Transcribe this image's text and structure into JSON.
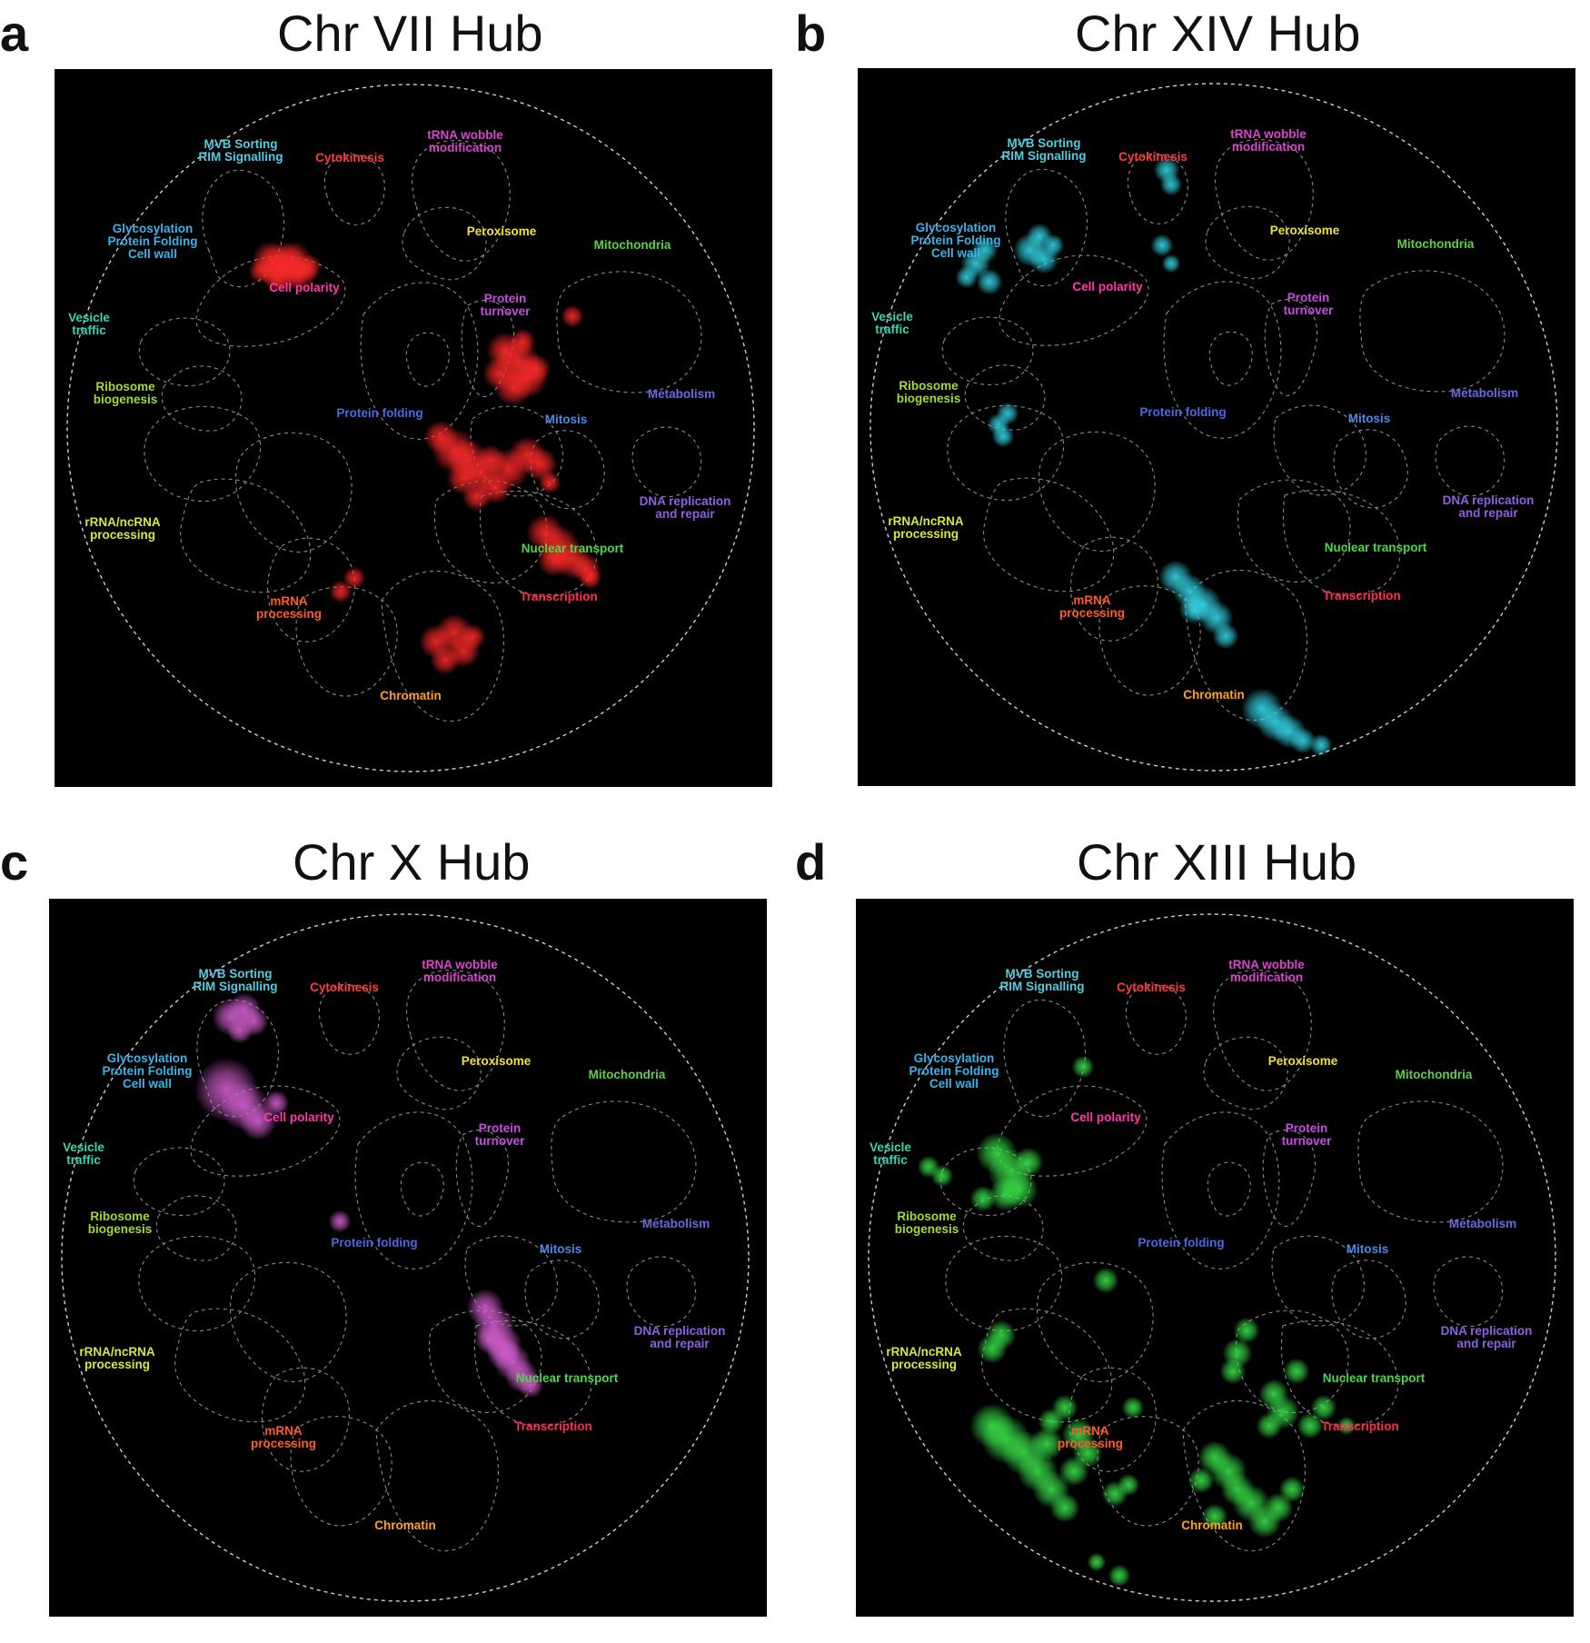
{
  "panels": [
    {
      "letter": "a",
      "title": "Chr VII Hub",
      "accent": "#ff2a2a",
      "cluster_set": "vii"
    },
    {
      "letter": "b",
      "title": "Chr XIV Hub",
      "accent": "#35d8e8",
      "cluster_set": "xiv"
    },
    {
      "letter": "c",
      "title": "Chr X Hub",
      "accent": "#d25fd0",
      "cluster_set": "x"
    },
    {
      "letter": "d",
      "title": "Chr XIII Hub",
      "accent": "#3ae24a",
      "cluster_set": "xiii"
    }
  ],
  "regions": [
    {
      "id": "mvb",
      "lines": [
        "MVB Sorting",
        "RIM Signalling"
      ],
      "color": "#52cde0"
    },
    {
      "id": "cytokinesis",
      "lines": [
        "Cytokinesis"
      ],
      "color": "#ff3b3b"
    },
    {
      "id": "trna",
      "lines": [
        "tRNA wobble",
        "modification"
      ],
      "color": "#d846c9"
    },
    {
      "id": "glyco",
      "lines": [
        "Glycosylation",
        "Protein Folding",
        "Cell wall"
      ],
      "color": "#3bb3e8"
    },
    {
      "id": "peroxisome",
      "lines": [
        "Peroxisome"
      ],
      "color": "#f0e13a"
    },
    {
      "id": "mitochondria",
      "lines": [
        "Mitochondria"
      ],
      "color": "#5fcf4a"
    },
    {
      "id": "cellpolarity",
      "lines": [
        "Cell polarity"
      ],
      "color": "#ff3aa6"
    },
    {
      "id": "vesicle",
      "lines": [
        "Vesicle",
        "traffic"
      ],
      "color": "#35d6b0"
    },
    {
      "id": "turnover",
      "lines": [
        "Protein",
        "turnover"
      ],
      "color": "#c44ee0"
    },
    {
      "id": "ribosome",
      "lines": [
        "Ribosome",
        "biogenesis"
      ],
      "color": "#9fdc3a"
    },
    {
      "id": "metabolism",
      "lines": [
        "Metabolism"
      ],
      "color": "#6a6ae0"
    },
    {
      "id": "folding",
      "lines": [
        "Protein folding"
      ],
      "color": "#4a68e0"
    },
    {
      "id": "mitosis",
      "lines": [
        "Mitosis"
      ],
      "color": "#4a8ae8"
    },
    {
      "id": "dna",
      "lines": [
        "DNA replication",
        "and repair"
      ],
      "color": "#8a62e0"
    },
    {
      "id": "rrna",
      "lines": [
        "rRNA/ncRNA",
        "processing"
      ],
      "color": "#d8e83a"
    },
    {
      "id": "nuclear",
      "lines": [
        "Nuclear transport"
      ],
      "color": "#4ad84a"
    },
    {
      "id": "mrna",
      "lines": [
        "mRNA",
        "processing"
      ],
      "color": "#ff5a2a"
    },
    {
      "id": "transcription",
      "lines": [
        "Transcription"
      ],
      "color": "#ff2e4a"
    },
    {
      "id": "chromatin",
      "lines": [
        "Chromatin"
      ],
      "color": "#ffa020"
    }
  ]
}
